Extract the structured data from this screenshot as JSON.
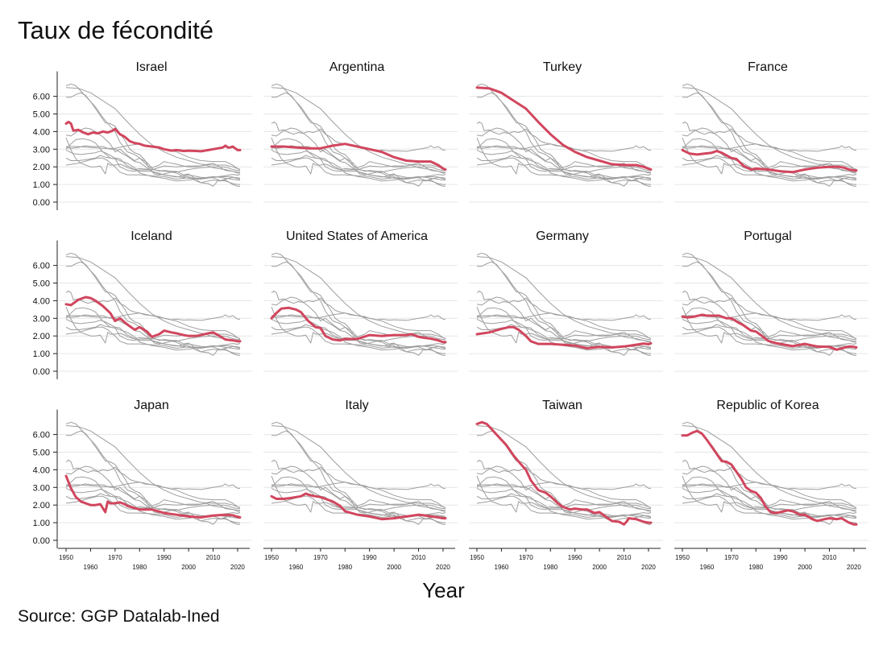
{
  "title": "Taux de fécondité",
  "xlabel": "Year",
  "source": "Source: GGP Datalab-Ined",
  "colors": {
    "highlight": "#d1465e",
    "background_lines": "#9e9e9e",
    "grid": "#e6e6e6",
    "axis": "#222222"
  },
  "chart_data": {
    "type": "line",
    "layout": "small-multiples 3x4",
    "title": "Taux de fécondité",
    "xlabel": "Year",
    "ylabel": "",
    "xlim": [
      1950,
      2021
    ],
    "ylim": [
      0,
      6.5
    ],
    "yticks": [
      "0.00",
      "1.00",
      "2.00",
      "3.00",
      "4.00",
      "5.00",
      "6.00"
    ],
    "xticks": [
      "1950",
      "1960",
      "1970",
      "1980",
      "1990",
      "2000",
      "2010",
      "2020"
    ],
    "grid": "horizontal",
    "highlight_color": "#d1465e",
    "series": [
      {
        "name": "Israel",
        "x": [
          1950,
          1951,
          1952,
          1953,
          1955,
          1957,
          1959,
          1961,
          1963,
          1965,
          1967,
          1969,
          1970,
          1972,
          1974,
          1976,
          1978,
          1980,
          1982,
          1985,
          1988,
          1990,
          1993,
          1995,
          1998,
          2000,
          2003,
          2005,
          2008,
          2010,
          2012,
          2014,
          2015,
          2016,
          2017,
          2018,
          2019,
          2020,
          2021
        ],
        "values": [
          4.45,
          4.55,
          4.45,
          4.05,
          4.1,
          3.95,
          3.85,
          3.95,
          3.9,
          4.0,
          3.95,
          4.05,
          4.15,
          3.85,
          3.7,
          3.45,
          3.35,
          3.3,
          3.2,
          3.15,
          3.1,
          3.0,
          2.92,
          2.95,
          2.9,
          2.92,
          2.9,
          2.88,
          2.95,
          3.0,
          3.05,
          3.1,
          3.2,
          3.1,
          3.1,
          3.15,
          3.05,
          2.95,
          2.95
        ]
      },
      {
        "name": "Argentina",
        "x": [
          1950,
          1955,
          1960,
          1965,
          1970,
          1975,
          1980,
          1985,
          1990,
          1995,
          2000,
          2005,
          2010,
          2015,
          2018,
          2020,
          2021
        ],
        "values": [
          3.15,
          3.15,
          3.1,
          3.05,
          3.05,
          3.2,
          3.3,
          3.15,
          3.0,
          2.85,
          2.55,
          2.35,
          2.3,
          2.3,
          2.1,
          1.9,
          1.85
        ]
      },
      {
        "name": "Turkey",
        "x": [
          1950,
          1955,
          1960,
          1965,
          1970,
          1975,
          1980,
          1985,
          1990,
          1995,
          2000,
          2005,
          2010,
          2015,
          2018,
          2020,
          2021
        ],
        "values": [
          6.5,
          6.45,
          6.2,
          5.75,
          5.3,
          4.55,
          3.85,
          3.25,
          2.85,
          2.55,
          2.35,
          2.15,
          2.1,
          2.1,
          2.0,
          1.9,
          1.85
        ]
      },
      {
        "name": "France",
        "x": [
          1950,
          1953,
          1956,
          1959,
          1962,
          1964,
          1966,
          1968,
          1970,
          1972,
          1975,
          1978,
          1980,
          1985,
          1990,
          1995,
          2000,
          2005,
          2010,
          2014,
          2016,
          2018,
          2020,
          2021
        ],
        "values": [
          2.95,
          2.75,
          2.7,
          2.75,
          2.8,
          2.9,
          2.8,
          2.65,
          2.5,
          2.45,
          2.05,
          1.85,
          1.9,
          1.85,
          1.75,
          1.7,
          1.85,
          1.95,
          2.0,
          2.0,
          1.95,
          1.85,
          1.8,
          1.8
        ]
      },
      {
        "name": "Iceland",
        "x": [
          1950,
          1952,
          1955,
          1958,
          1960,
          1962,
          1965,
          1968,
          1970,
          1972,
          1975,
          1978,
          1980,
          1983,
          1985,
          1988,
          1990,
          1993,
          1995,
          1998,
          2000,
          2003,
          2005,
          2008,
          2010,
          2012,
          2015,
          2018,
          2020,
          2021
        ],
        "values": [
          3.8,
          3.75,
          4.05,
          4.2,
          4.15,
          4.0,
          3.7,
          3.3,
          2.85,
          3.0,
          2.65,
          2.35,
          2.5,
          2.25,
          1.95,
          2.1,
          2.3,
          2.2,
          2.15,
          2.05,
          2.0,
          2.0,
          2.05,
          2.15,
          2.2,
          2.05,
          1.8,
          1.75,
          1.7,
          1.7
        ]
      },
      {
        "name": "United States of America",
        "x": [
          1950,
          1952,
          1954,
          1957,
          1960,
          1962,
          1965,
          1968,
          1970,
          1972,
          1975,
          1978,
          1980,
          1985,
          1990,
          1995,
          2000,
          2005,
          2007,
          2010,
          2012,
          2015,
          2018,
          2020,
          2021
        ],
        "values": [
          3.0,
          3.3,
          3.55,
          3.6,
          3.5,
          3.35,
          2.85,
          2.5,
          2.45,
          2.0,
          1.8,
          1.75,
          1.82,
          1.83,
          2.05,
          2.0,
          2.05,
          2.05,
          2.1,
          1.95,
          1.9,
          1.85,
          1.75,
          1.65,
          1.65
        ]
      },
      {
        "name": "Germany",
        "x": [
          1950,
          1955,
          1960,
          1963,
          1965,
          1967,
          1970,
          1972,
          1975,
          1980,
          1985,
          1990,
          1995,
          2000,
          2005,
          2010,
          2015,
          2018,
          2020,
          2021
        ],
        "values": [
          2.1,
          2.2,
          2.4,
          2.5,
          2.5,
          2.35,
          2.0,
          1.7,
          1.55,
          1.55,
          1.5,
          1.45,
          1.3,
          1.38,
          1.35,
          1.4,
          1.5,
          1.57,
          1.53,
          1.58
        ]
      },
      {
        "name": "Portugal",
        "x": [
          1950,
          1952,
          1955,
          1958,
          1960,
          1963,
          1965,
          1968,
          1970,
          1973,
          1975,
          1978,
          1980,
          1983,
          1985,
          1988,
          1990,
          1995,
          2000,
          2005,
          2010,
          2013,
          2015,
          2018,
          2020,
          2021
        ],
        "values": [
          3.1,
          3.05,
          3.1,
          3.2,
          3.15,
          3.15,
          3.15,
          3.0,
          3.0,
          2.75,
          2.6,
          2.3,
          2.25,
          1.95,
          1.72,
          1.6,
          1.55,
          1.42,
          1.55,
          1.4,
          1.38,
          1.22,
          1.3,
          1.4,
          1.38,
          1.35
        ]
      },
      {
        "name": "Japan",
        "x": [
          1950,
          1952,
          1954,
          1956,
          1958,
          1960,
          1962,
          1964,
          1966,
          1967,
          1968,
          1970,
          1972,
          1974,
          1975,
          1980,
          1985,
          1990,
          1995,
          2000,
          2005,
          2010,
          2015,
          2018,
          2020,
          2021
        ],
        "values": [
          3.65,
          2.95,
          2.45,
          2.2,
          2.1,
          2.0,
          2.0,
          2.05,
          1.6,
          2.2,
          2.1,
          2.1,
          2.15,
          2.05,
          1.95,
          1.75,
          1.75,
          1.55,
          1.45,
          1.35,
          1.3,
          1.4,
          1.45,
          1.42,
          1.33,
          1.3
        ]
      },
      {
        "name": "Italy",
        "x": [
          1950,
          1952,
          1955,
          1958,
          1960,
          1962,
          1964,
          1966,
          1968,
          1970,
          1972,
          1975,
          1978,
          1980,
          1985,
          1990,
          1995,
          2000,
          2005,
          2010,
          2012,
          2015,
          2018,
          2020,
          2021
        ],
        "values": [
          2.5,
          2.35,
          2.35,
          2.4,
          2.45,
          2.5,
          2.65,
          2.55,
          2.5,
          2.45,
          2.35,
          2.2,
          1.95,
          1.65,
          1.45,
          1.35,
          1.2,
          1.25,
          1.35,
          1.45,
          1.42,
          1.35,
          1.3,
          1.25,
          1.25
        ]
      },
      {
        "name": "Taiwan",
        "x": [
          1950,
          1952,
          1954,
          1956,
          1958,
          1960,
          1962,
          1965,
          1968,
          1970,
          1972,
          1975,
          1978,
          1980,
          1983,
          1985,
          1988,
          1990,
          1993,
          1995,
          1998,
          2000,
          2003,
          2005,
          2008,
          2010,
          2011,
          2012,
          2015,
          2018,
          2020,
          2021
        ],
        "values": [
          6.6,
          6.7,
          6.6,
          6.3,
          6.0,
          5.7,
          5.4,
          4.8,
          4.3,
          4.0,
          3.4,
          2.85,
          2.7,
          2.5,
          2.1,
          1.9,
          1.75,
          1.8,
          1.75,
          1.75,
          1.55,
          1.6,
          1.3,
          1.1,
          1.05,
          0.9,
          1.05,
          1.25,
          1.2,
          1.05,
          1.0,
          1.0
        ]
      },
      {
        "name": "Republic of Korea",
        "x": [
          1950,
          1952,
          1954,
          1956,
          1958,
          1960,
          1962,
          1964,
          1966,
          1968,
          1970,
          1972,
          1974,
          1976,
          1978,
          1980,
          1982,
          1984,
          1986,
          1988,
          1990,
          1993,
          1995,
          1998,
          2000,
          2003,
          2005,
          2008,
          2010,
          2013,
          2015,
          2018,
          2020,
          2021
        ],
        "values": [
          5.95,
          5.95,
          6.1,
          6.2,
          6.05,
          5.7,
          5.3,
          4.9,
          4.5,
          4.45,
          4.3,
          3.9,
          3.5,
          3.0,
          2.8,
          2.7,
          2.4,
          1.9,
          1.6,
          1.55,
          1.6,
          1.7,
          1.65,
          1.45,
          1.45,
          1.2,
          1.1,
          1.2,
          1.25,
          1.2,
          1.25,
          1.0,
          0.9,
          0.9
        ]
      }
    ]
  }
}
